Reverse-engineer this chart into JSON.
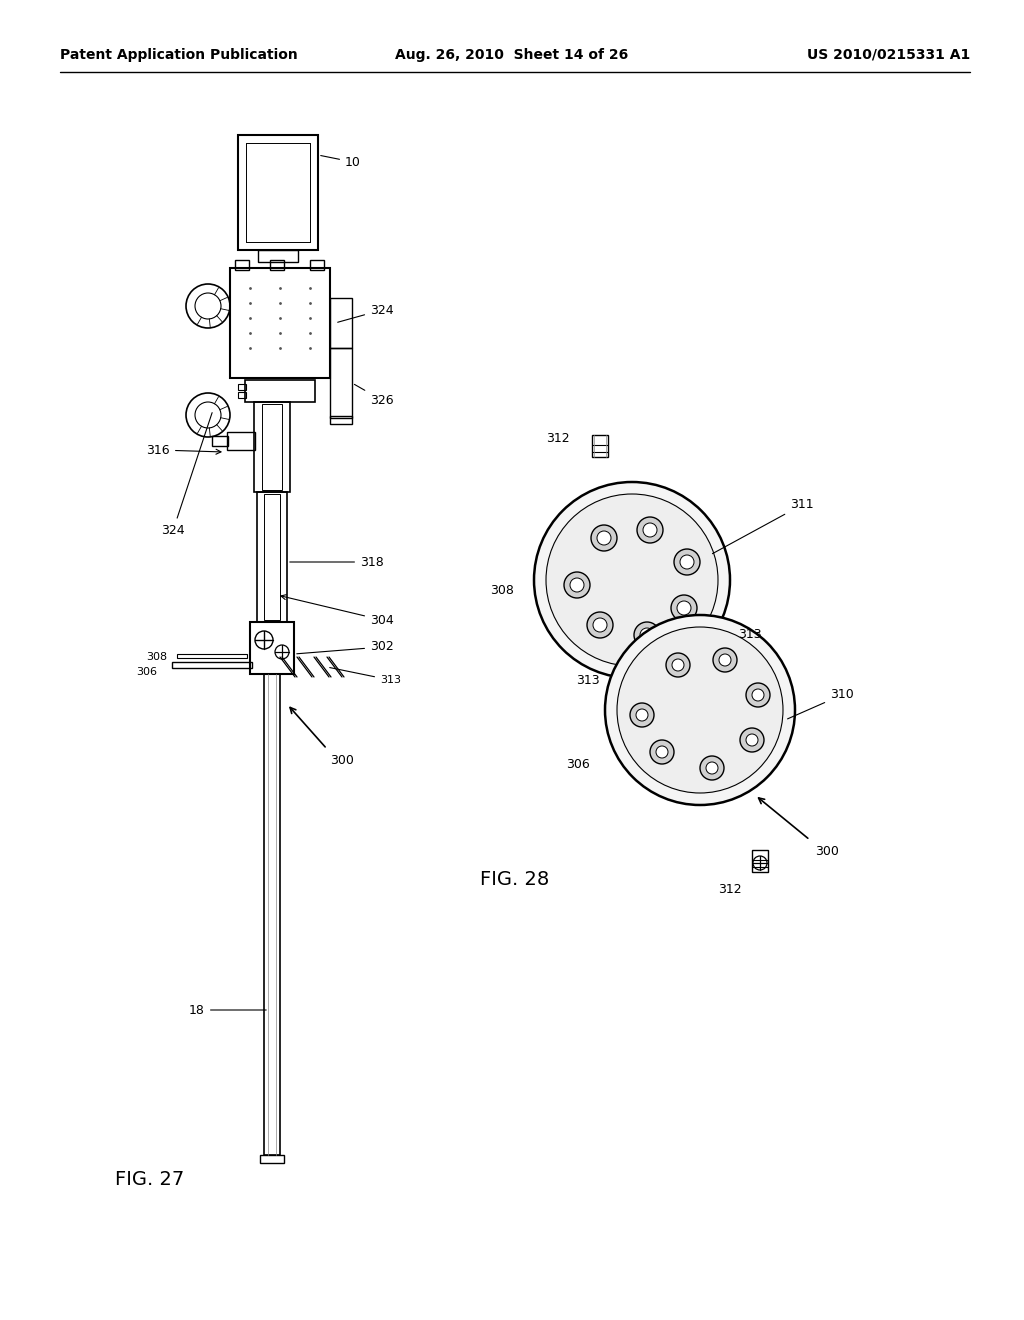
{
  "bg_color": "#ffffff",
  "header_left": "Patent Application Publication",
  "header_mid": "Aug. 26, 2010  Sheet 14 of 26",
  "header_right": "US 2010/0215331 A1",
  "fig27_label": "FIG. 27",
  "fig28_label": "FIG. 28",
  "line_color": "#000000",
  "fig_label_fontsize": 14,
  "header_fontsize": 10,
  "annotation_fontsize": 9
}
